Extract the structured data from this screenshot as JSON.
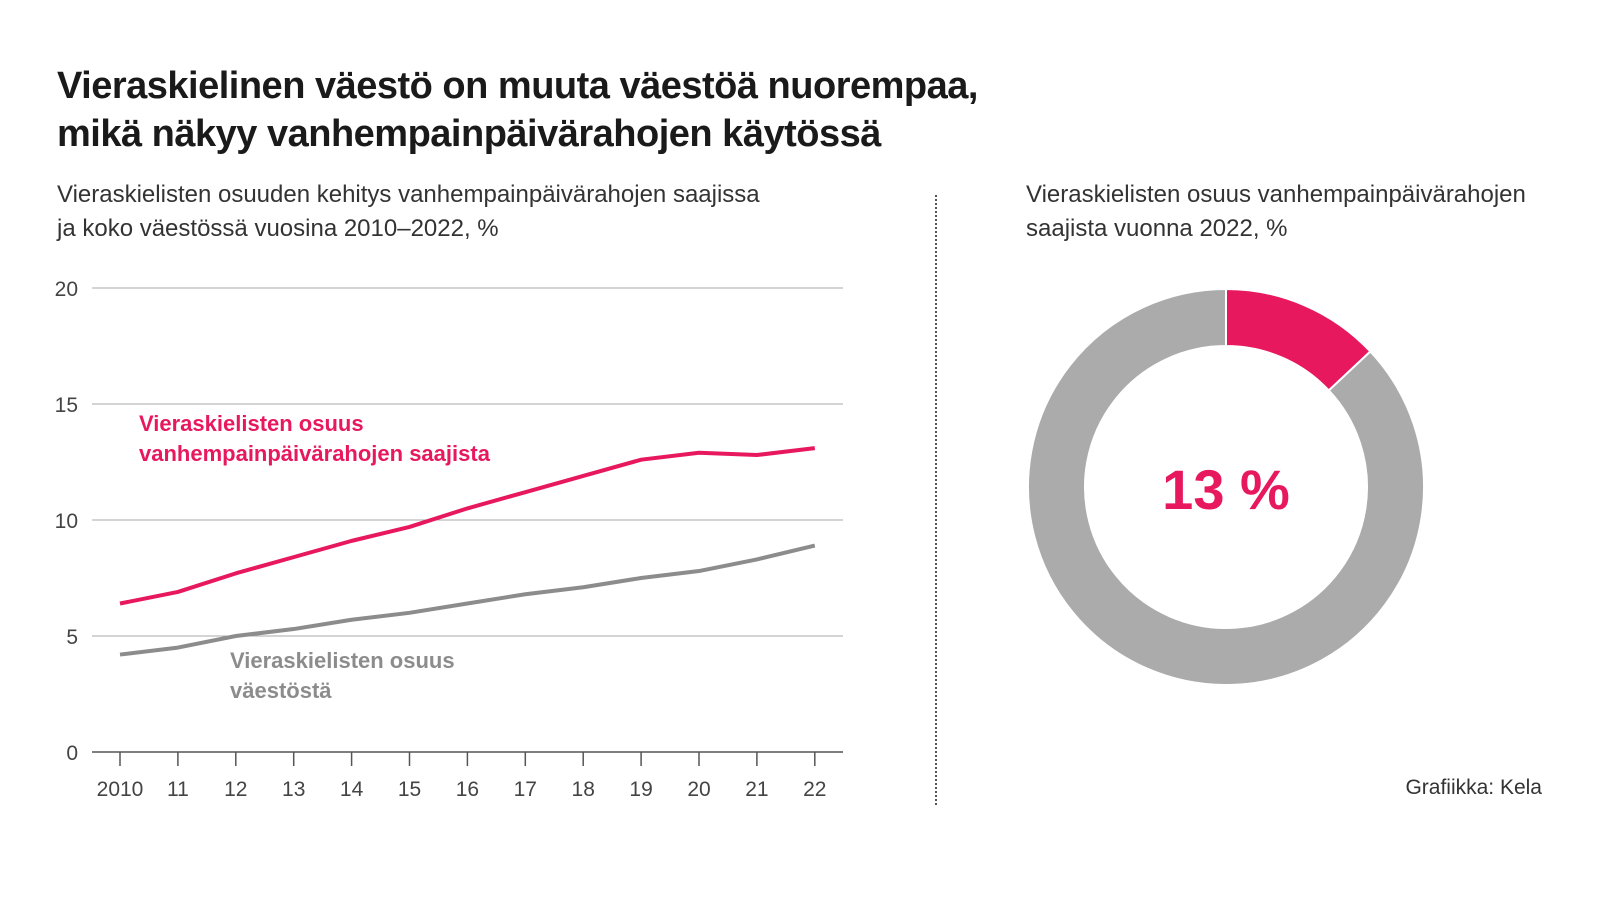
{
  "title_line1": "Vieraskielinen väestö on muuta väestöä nuorempaa,",
  "title_line2": "mikä näkyy vanhempainpäivärahojen käytössä",
  "credit": "Grafiikka: Kela",
  "colors": {
    "pink": "#e8185e",
    "gray": "#8c8c8c",
    "donut_gray": "#ababab"
  },
  "chart_data": [
    {
      "type": "line",
      "subtitle_line1": "Vieraskielisten osuuden kehitys vanhempainpäivärahojen saajissa",
      "subtitle_line2": "ja koko väestössä vuosina 2010–2022, %",
      "categories": [
        "2010",
        "11",
        "12",
        "13",
        "14",
        "15",
        "16",
        "17",
        "18",
        "19",
        "20",
        "21",
        "22"
      ],
      "ylim": [
        0,
        20
      ],
      "yticks": [
        "0",
        "5",
        "10",
        "15",
        "20"
      ],
      "grid": true,
      "series": [
        {
          "name_line1": "Vieraskielisten osuus",
          "name_line2": "vanhempainpäivärahojen saajista",
          "color": "#e8185e",
          "values": [
            6.4,
            6.9,
            7.7,
            8.4,
            9.1,
            9.7,
            10.5,
            11.2,
            11.9,
            12.6,
            12.9,
            12.8,
            13.1
          ]
        },
        {
          "name_line1": "Vieraskielisten osuus",
          "name_line2": "väestöstä",
          "color": "#8c8c8c",
          "values": [
            4.2,
            4.5,
            5.0,
            5.3,
            5.7,
            6.0,
            6.4,
            6.8,
            7.1,
            7.5,
            7.8,
            8.3,
            8.9
          ]
        }
      ]
    },
    {
      "type": "pie",
      "subtitle_line1": "Vieraskielisten osuus vanhempainpäivärahojen",
      "subtitle_line2": "saajista vuonna 2022, %",
      "values": [
        13,
        87
      ],
      "center_label": "13 %"
    }
  ]
}
